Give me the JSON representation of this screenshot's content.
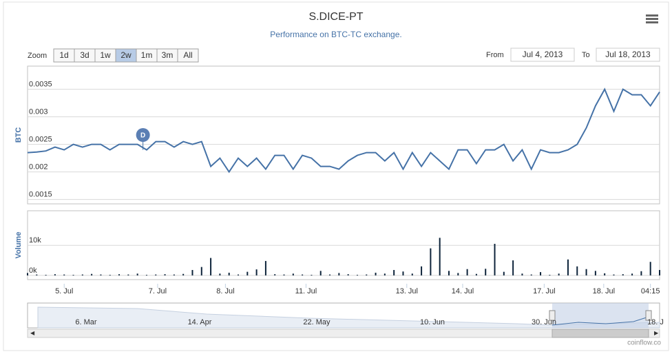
{
  "chart_data": [
    {
      "type": "line",
      "title": "S.DICE-PT",
      "subtitle": "Performance on BTC-TC exchange.",
      "y_label": "BTC",
      "zoom_label": "Zoom",
      "zoom_buttons": [
        "1d",
        "3d",
        "1w",
        "2w",
        "1m",
        "3m",
        "All"
      ],
      "zoom_selected": 3,
      "from_label": "From",
      "from_value": "Jul 4, 2013",
      "to_label": "To",
      "to_value": "Jul 18, 2013",
      "flag": "D",
      "flag_x": 12.6,
      "xlim": [
        0,
        69
      ],
      "ylim": [
        0.00142,
        0.00392
      ],
      "yticks": [
        0.0015,
        0.002,
        0.0025,
        0.003,
        0.0035
      ],
      "grid": true,
      "series": [
        {
          "name": "S.DICE-PT",
          "color": "#4572a7",
          "x": [
            0,
            1,
            2,
            3,
            4,
            5,
            6,
            7,
            8,
            9,
            10,
            11,
            12,
            13,
            14,
            15,
            16,
            17,
            18,
            19,
            20,
            21,
            22,
            23,
            24,
            25,
            26,
            27,
            28,
            29,
            30,
            31,
            32,
            33,
            34,
            35,
            36,
            37,
            38,
            39,
            40,
            41,
            42,
            43,
            44,
            45,
            46,
            47,
            48,
            49,
            50,
            51,
            52,
            53,
            54,
            55,
            56,
            57,
            58,
            59,
            60,
            61,
            62,
            63,
            64,
            65,
            66,
            67,
            68,
            69
          ],
          "values": [
            0.00235,
            0.00236,
            0.00238,
            0.00245,
            0.0024,
            0.0025,
            0.00245,
            0.0025,
            0.0025,
            0.0024,
            0.0025,
            0.0025,
            0.0025,
            0.0024,
            0.00255,
            0.00255,
            0.00245,
            0.00255,
            0.0025,
            0.00255,
            0.0021,
            0.00225,
            0.002,
            0.00225,
            0.0021,
            0.00225,
            0.00205,
            0.0023,
            0.0023,
            0.00205,
            0.0023,
            0.00225,
            0.0021,
            0.0021,
            0.00205,
            0.0022,
            0.0023,
            0.00235,
            0.00235,
            0.0022,
            0.00235,
            0.00205,
            0.00235,
            0.0021,
            0.00235,
            0.0022,
            0.00205,
            0.0024,
            0.0024,
            0.00215,
            0.0024,
            0.0024,
            0.0025,
            0.0022,
            0.0024,
            0.00205,
            0.0024,
            0.00235,
            0.00235,
            0.0024,
            0.0025,
            0.0028,
            0.0032,
            0.0035,
            0.0031,
            0.0035,
            0.0034,
            0.0034,
            0.0032,
            0.00345
          ]
        }
      ]
    },
    {
      "type": "bar",
      "y_label": "Volume",
      "credit": "coinflow.co",
      "xlim": [
        0,
        69
      ],
      "ylim": [
        -1400,
        21500
      ],
      "yticks": [
        {
          "value": 0,
          "label": "0k"
        },
        {
          "value": 10000,
          "label": "10k"
        }
      ],
      "xticks": [
        {
          "value": 4,
          "label": "5. Jul"
        },
        {
          "value": 14.2,
          "label": "7. Jul"
        },
        {
          "value": 21.6,
          "label": "8. Jul"
        },
        {
          "value": 30.4,
          "label": "11. Jul"
        },
        {
          "value": 41.4,
          "label": "13. Jul"
        },
        {
          "value": 47.5,
          "label": "14. Jul"
        },
        {
          "value": 56.4,
          "label": "17. Jul"
        },
        {
          "value": 62.9,
          "label": "18. Jul"
        },
        {
          "value": 68,
          "label": "04:15"
        }
      ],
      "grid": true,
      "navigator_labels": [
        "6. Mar",
        "14. Apr",
        "22. May",
        "10. Jun",
        "30. Jun",
        "18. J"
      ],
      "series": [
        {
          "name": "Volume",
          "color": "#0d233a",
          "x": [
            0,
            1,
            2,
            3,
            4,
            5,
            6,
            7,
            8,
            9,
            10,
            11,
            12,
            13,
            14,
            15,
            16,
            17,
            18,
            19,
            20,
            21,
            22,
            23,
            24,
            25,
            26,
            27,
            28,
            29,
            30,
            31,
            32,
            33,
            34,
            35,
            36,
            37,
            38,
            39,
            40,
            41,
            42,
            43,
            44,
            45,
            46,
            47,
            48,
            49,
            50,
            51,
            52,
            53,
            54,
            55,
            56,
            57,
            58,
            59,
            60,
            61,
            62,
            63,
            64,
            65,
            66,
            67,
            68,
            69
          ],
          "values": [
            800,
            300,
            200,
            400,
            300,
            200,
            300,
            500,
            300,
            200,
            400,
            300,
            600,
            200,
            300,
            400,
            300,
            500,
            1800,
            2800,
            5800,
            600,
            900,
            300,
            1200,
            2000,
            4800,
            400,
            300,
            600,
            300,
            200,
            1500,
            300,
            800,
            400,
            200,
            300,
            900,
            600,
            1800,
            1300,
            600,
            3000,
            9000,
            12500,
            1500,
            800,
            2100,
            500,
            2200,
            10500,
            1200,
            5000,
            600,
            300,
            1100,
            200,
            600,
            5300,
            3000,
            2100,
            1500,
            700,
            300,
            400,
            600,
            1400,
            4500,
            1800
          ]
        }
      ]
    }
  ]
}
